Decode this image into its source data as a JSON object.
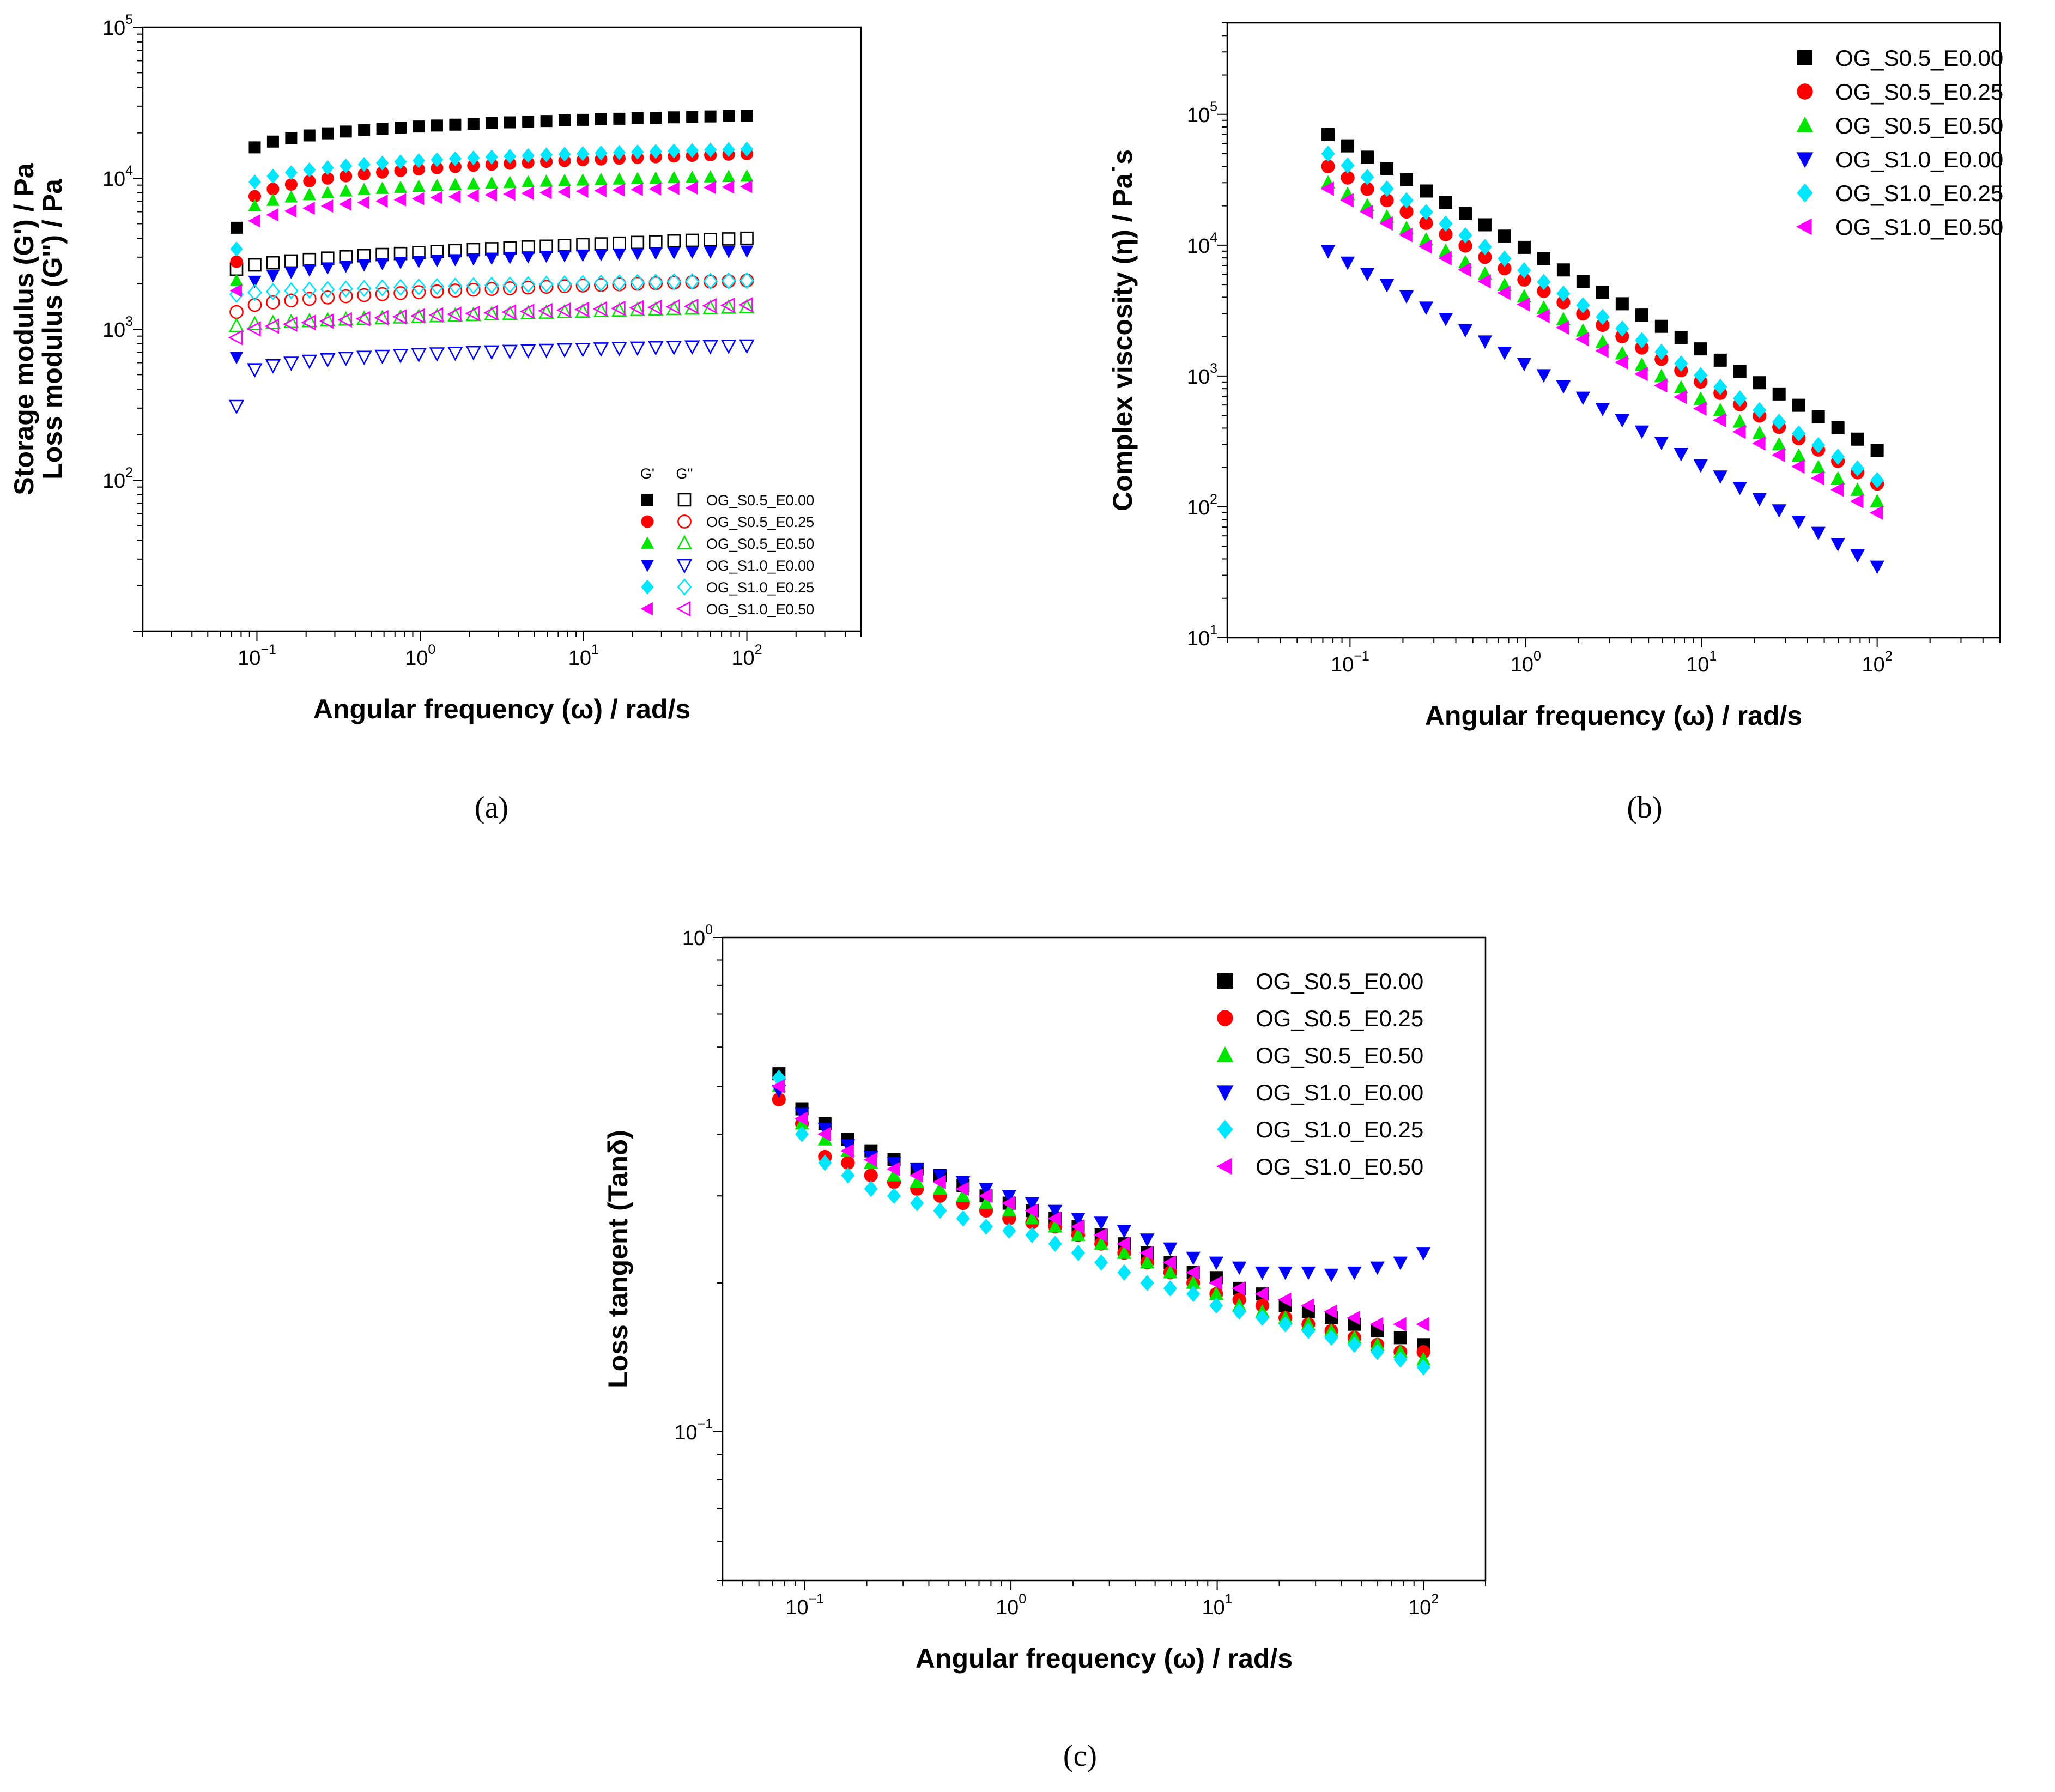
{
  "colors": {
    "OG_S0.5_E0.00": "#000000",
    "OG_S0.5_E0.25": "#ff0000",
    "OG_S0.5_E0.50": "#00e600",
    "OG_S1.0_E0.00": "#0000ff",
    "OG_S1.0_E0.25": "#00e6ff",
    "OG_S1.0_E0.50": "#ff00ff"
  },
  "markers": {
    "OG_S0.5_E0.00": "square",
    "OG_S0.5_E0.25": "circle",
    "OG_S0.5_E0.50": "triangle-up",
    "OG_S1.0_E0.00": "triangle-down",
    "OG_S1.0_E0.25": "diamond",
    "OG_S1.0_E0.50": "triangle-left"
  },
  "chart_data": [
    {
      "panel": "a",
      "panel_label": "(a)",
      "type": "scatter",
      "xscale": "log",
      "yscale": "log",
      "xlim": [
        0.02,
        500
      ],
      "ylim": [
        10,
        100000
      ],
      "x_ticks": [
        0.1,
        1,
        10,
        100
      ],
      "y_ticks": [
        100,
        1000,
        10000,
        100000
      ],
      "xlabel": "Angular frequency (ω) / rad/s",
      "ylabel": [
        "Storage modulus (G') / Pa",
        "Loss modulus (G'') / Pa"
      ],
      "legend_headers": [
        "G'",
        "G''"
      ],
      "legend_position": "bottom-right",
      "series": [
        {
          "name": "OG_S0.5_E0.00",
          "fill": "filled",
          "start": 4700,
          "end": 26000,
          "shape": 0.1
        },
        {
          "name": "OG_S0.5_E0.00",
          "fill": "open",
          "start": 2500,
          "end": 4000,
          "shape": 0.6
        },
        {
          "name": "OG_S0.5_E0.25",
          "fill": "filled",
          "start": 2800,
          "end": 14500,
          "shape": 0.15
        },
        {
          "name": "OG_S0.5_E0.25",
          "fill": "open",
          "start": 1300,
          "end": 2100,
          "shape": 0.45
        },
        {
          "name": "OG_S0.5_E0.50",
          "fill": "filled",
          "start": 2100,
          "end": 10300,
          "shape": 0.1
        },
        {
          "name": "OG_S0.5_E0.50",
          "fill": "open",
          "start": 1050,
          "end": 1400,
          "shape": 0.7
        },
        {
          "name": "OG_S1.0_E0.00",
          "fill": "filled",
          "start": 650,
          "end": 3300,
          "shape": 0.1
        },
        {
          "name": "OG_S1.0_E0.00",
          "fill": "open",
          "start": 310,
          "end": 780,
          "shape": 0.15
        },
        {
          "name": "OG_S1.0_E0.25",
          "fill": "filled",
          "start": 3400,
          "end": 15600,
          "shape": 0.12
        },
        {
          "name": "OG_S1.0_E0.25",
          "fill": "open",
          "start": 1700,
          "end": 2100,
          "shape": 0.6
        },
        {
          "name": "OG_S1.0_E0.50",
          "fill": "filled",
          "start": 1800,
          "end": 8800,
          "shape": 0.12
        },
        {
          "name": "OG_S1.0_E0.50",
          "fill": "open",
          "start": 880,
          "end": 1450,
          "shape": 0.4
        }
      ]
    },
    {
      "panel": "b",
      "panel_label": "(b)",
      "type": "scatter",
      "xscale": "log",
      "yscale": "log",
      "xlim": [
        0.02,
        500
      ],
      "ylim": [
        10,
        500000
      ],
      "x_ticks": [
        0.1,
        1,
        10,
        100
      ],
      "y_ticks": [
        10,
        100,
        1000,
        10000,
        100000
      ],
      "xlabel": "Angular frequency (ω) / rad/s",
      "ylabel": "Complex viscosity (η) / Pa˙s",
      "legend_position": "top-right",
      "series": [
        {
          "name": "OG_S0.5_E0.00",
          "fill": "filled",
          "start": 70000,
          "end": 270
        },
        {
          "name": "OG_S0.5_E0.25",
          "fill": "filled",
          "start": 40000,
          "end": 150
        },
        {
          "name": "OG_S0.5_E0.50",
          "fill": "filled",
          "start": 30000,
          "end": 110
        },
        {
          "name": "OG_S1.0_E0.00",
          "fill": "filled",
          "start": 9000,
          "end": 35
        },
        {
          "name": "OG_S1.0_E0.25",
          "fill": "filled",
          "start": 50000,
          "end": 160
        },
        {
          "name": "OG_S1.0_E0.50",
          "fill": "filled",
          "start": 27000,
          "end": 90
        }
      ]
    },
    {
      "panel": "c",
      "panel_label": "(c)",
      "type": "scatter",
      "xscale": "log",
      "yscale": "log",
      "xlim": [
        0.04,
        200
      ],
      "ylim": [
        0.05,
        1
      ],
      "x_ticks": [
        0.1,
        1,
        10,
        100
      ],
      "y_ticks": [
        0.1,
        1
      ],
      "xlabel": "Angular frequency (ω) / rad/s",
      "ylabel": "Loss tangent (Tanδ)",
      "legend_position": "top-right",
      "series": [
        {
          "name": "OG_S0.5_E0.00",
          "fill": "filled",
          "values": [
            0.53,
            0.45,
            0.42,
            0.39,
            0.37,
            0.355,
            0.34,
            0.33,
            0.315,
            0.3,
            0.29,
            0.28,
            0.27,
            0.26,
            0.25,
            0.24,
            0.23,
            0.22,
            0.21,
            0.205,
            0.195,
            0.19,
            0.18,
            0.175,
            0.17,
            0.165,
            0.16,
            0.155,
            0.15
          ]
        },
        {
          "name": "OG_S0.5_E0.25",
          "fill": "filled",
          "values": [
            0.47,
            0.42,
            0.36,
            0.35,
            0.33,
            0.32,
            0.31,
            0.3,
            0.29,
            0.28,
            0.27,
            0.265,
            0.26,
            0.25,
            0.24,
            0.23,
            0.22,
            0.21,
            0.2,
            0.19,
            0.185,
            0.18,
            0.17,
            0.165,
            0.16,
            0.155,
            0.15,
            0.145,
            0.145
          ]
        },
        {
          "name": "OG_S0.5_E0.50",
          "fill": "filled",
          "values": [
            0.5,
            0.42,
            0.39,
            0.37,
            0.35,
            0.33,
            0.32,
            0.31,
            0.3,
            0.29,
            0.28,
            0.27,
            0.26,
            0.25,
            0.24,
            0.23,
            0.22,
            0.21,
            0.2,
            0.19,
            0.18,
            0.175,
            0.17,
            0.165,
            0.16,
            0.155,
            0.15,
            0.145,
            0.14
          ]
        },
        {
          "name": "OG_S1.0_E0.00",
          "fill": "filled",
          "values": [
            0.49,
            0.44,
            0.41,
            0.38,
            0.36,
            0.35,
            0.34,
            0.33,
            0.32,
            0.31,
            0.3,
            0.29,
            0.28,
            0.27,
            0.265,
            0.255,
            0.245,
            0.235,
            0.225,
            0.22,
            0.215,
            0.21,
            0.21,
            0.21,
            0.208,
            0.21,
            0.215,
            0.22,
            0.23
          ]
        },
        {
          "name": "OG_S1.0_E0.25",
          "fill": "filled",
          "values": [
            0.52,
            0.4,
            0.35,
            0.33,
            0.31,
            0.3,
            0.29,
            0.28,
            0.27,
            0.26,
            0.255,
            0.25,
            0.24,
            0.23,
            0.22,
            0.21,
            0.2,
            0.195,
            0.19,
            0.18,
            0.175,
            0.17,
            0.165,
            0.16,
            0.155,
            0.15,
            0.145,
            0.14,
            0.135
          ]
        },
        {
          "name": "OG_S1.0_E0.50",
          "fill": "filled",
          "values": [
            0.5,
            0.43,
            0.4,
            0.37,
            0.355,
            0.34,
            0.33,
            0.32,
            0.31,
            0.3,
            0.29,
            0.28,
            0.27,
            0.26,
            0.25,
            0.24,
            0.23,
            0.22,
            0.21,
            0.2,
            0.195,
            0.19,
            0.185,
            0.18,
            0.175,
            0.17,
            0.165,
            0.165,
            0.165
          ]
        }
      ]
    }
  ]
}
